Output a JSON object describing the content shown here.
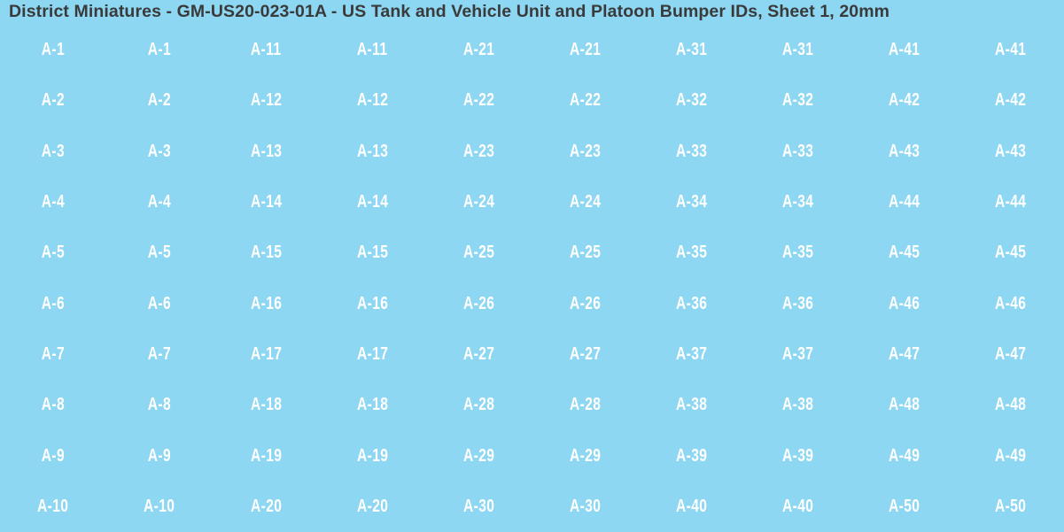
{
  "title": "District Miniatures - GM-US20-023-01A - US Tank and Vehicle Unit and Platoon Bumper IDs, Sheet 1, 20mm",
  "colors": {
    "sheet_background": "#8dd7f3",
    "title_text": "#3a3a3a",
    "label_text": "#ffffff"
  },
  "sheet": {
    "rows": [
      [
        "A-1",
        "A-1",
        "A-11",
        "A-11",
        "A-21",
        "A-21",
        "A-31",
        "A-31",
        "A-41",
        "A-41"
      ],
      [
        "A-2",
        "A-2",
        "A-12",
        "A-12",
        "A-22",
        "A-22",
        "A-32",
        "A-32",
        "A-42",
        "A-42"
      ],
      [
        "A-3",
        "A-3",
        "A-13",
        "A-13",
        "A-23",
        "A-23",
        "A-33",
        "A-33",
        "A-43",
        "A-43"
      ],
      [
        "A-4",
        "A-4",
        "A-14",
        "A-14",
        "A-24",
        "A-24",
        "A-34",
        "A-34",
        "A-44",
        "A-44"
      ],
      [
        "A-5",
        "A-5",
        "A-15",
        "A-15",
        "A-25",
        "A-25",
        "A-35",
        "A-35",
        "A-45",
        "A-45"
      ],
      [
        "A-6",
        "A-6",
        "A-16",
        "A-16",
        "A-26",
        "A-26",
        "A-36",
        "A-36",
        "A-46",
        "A-46"
      ],
      [
        "A-7",
        "A-7",
        "A-17",
        "A-17",
        "A-27",
        "A-27",
        "A-37",
        "A-37",
        "A-47",
        "A-47"
      ],
      [
        "A-8",
        "A-8",
        "A-18",
        "A-18",
        "A-28",
        "A-28",
        "A-38",
        "A-38",
        "A-48",
        "A-48"
      ],
      [
        "A-9",
        "A-9",
        "A-19",
        "A-19",
        "A-29",
        "A-29",
        "A-39",
        "A-39",
        "A-49",
        "A-49"
      ],
      [
        "A-10",
        "A-10",
        "A-20",
        "A-20",
        "A-30",
        "A-30",
        "A-40",
        "A-40",
        "A-50",
        "A-50"
      ]
    ]
  }
}
